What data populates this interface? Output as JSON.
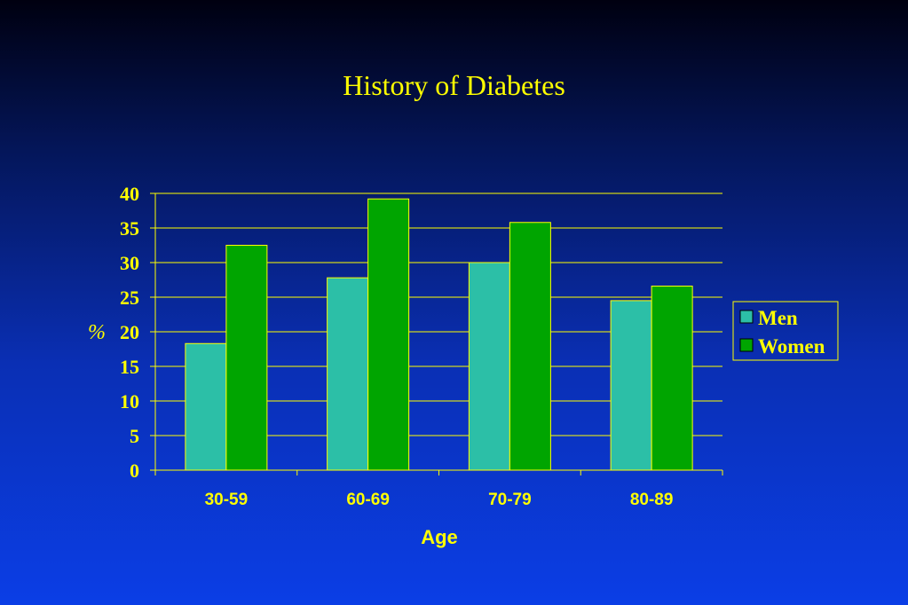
{
  "title": "History of Diabetes",
  "colors": {
    "text": "#ffff00",
    "men": "#2cbfa7",
    "women": "#00a500",
    "gridline": "#ffff00"
  },
  "chart_data": {
    "type": "bar",
    "title": "History of Diabetes",
    "xlabel": "Age",
    "ylabel": "%",
    "ylim": [
      0,
      40
    ],
    "yticks": [
      0,
      5,
      10,
      15,
      20,
      25,
      30,
      35,
      40
    ],
    "grid": true,
    "legend_position": "right",
    "categories": [
      "30-59",
      "60-69",
      "70-79",
      "80-89"
    ],
    "series": [
      {
        "name": "Men",
        "values": [
          18.3,
          27.8,
          30.0,
          24.5
        ]
      },
      {
        "name": "Women",
        "values": [
          32.5,
          39.2,
          35.8,
          26.6
        ]
      }
    ]
  }
}
